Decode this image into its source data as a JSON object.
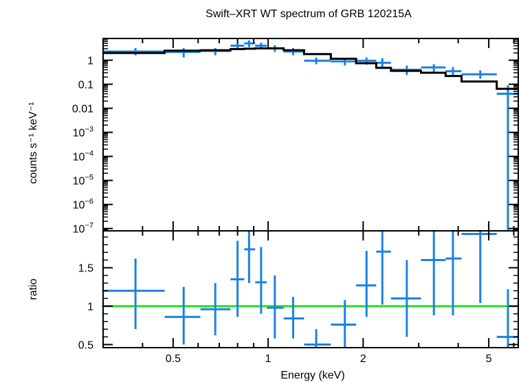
{
  "chart_data": {
    "type": "scatter",
    "title": "Swift–XRT WT spectrum of GRB 120215A",
    "xlabel": "Energy (keV)",
    "x_scale": "log",
    "xlim": [
      0.3,
      6.2
    ],
    "x_ticks": [
      {
        "value": 0.5,
        "label": "0.5"
      },
      {
        "value": 1,
        "label": "1"
      },
      {
        "value": 2,
        "label": "2"
      },
      {
        "value": 5,
        "label": "5"
      }
    ],
    "spectrum_panel": {
      "ylabel": "counts s⁻¹ keV⁻¹",
      "y_scale": "log",
      "ylim": [
        8e-08,
        8
      ],
      "y_ticks": [
        {
          "value": 1,
          "label": "1"
        },
        {
          "value": 0.1,
          "label": "0.1"
        },
        {
          "value": 0.01,
          "label": "0.01"
        },
        {
          "base": "10",
          "exp": "−3",
          "value": 0.001
        },
        {
          "base": "10",
          "exp": "−4",
          "value": 0.0001
        },
        {
          "base": "10",
          "exp": "−5",
          "value": 1e-05
        },
        {
          "base": "10",
          "exp": "−6",
          "value": 1e-06
        },
        {
          "base": "10",
          "exp": "−7",
          "value": 1e-07
        }
      ],
      "data_color": "#1a82e6",
      "model_color": "#000000",
      "data_points": [
        {
          "x": 0.38,
          "xlo": 0.3,
          "xhi": 0.47,
          "y": 2.3,
          "ylo": 1.6,
          "yhi": 3.2
        },
        {
          "x": 0.54,
          "xlo": 0.47,
          "xhi": 0.61,
          "y": 2.2,
          "ylo": 1.3,
          "yhi": 3.2
        },
        {
          "x": 0.68,
          "xlo": 0.61,
          "xhi": 0.76,
          "y": 2.4,
          "ylo": 1.6,
          "yhi": 3.2
        },
        {
          "x": 0.8,
          "xlo": 0.76,
          "xhi": 0.84,
          "y": 4.0,
          "ylo": 2.6,
          "yhi": 5.3
        },
        {
          "x": 0.87,
          "xlo": 0.84,
          "xhi": 0.91,
          "y": 5.0,
          "ylo": 3.5,
          "yhi": 6.7
        },
        {
          "x": 0.95,
          "xlo": 0.91,
          "xhi": 0.99,
          "y": 4.0,
          "ylo": 2.8,
          "yhi": 5.4
        },
        {
          "x": 1.05,
          "xlo": 0.99,
          "xhi": 1.12,
          "y": 3.1,
          "ylo": 2.2,
          "yhi": 4.2
        },
        {
          "x": 1.2,
          "xlo": 1.12,
          "xhi": 1.3,
          "y": 2.3,
          "ylo": 1.6,
          "yhi": 3.2
        },
        {
          "x": 1.42,
          "xlo": 1.3,
          "xhi": 1.58,
          "y": 0.95,
          "ylo": 0.68,
          "yhi": 1.3
        },
        {
          "x": 1.75,
          "xlo": 1.58,
          "xhi": 1.9,
          "y": 0.9,
          "ylo": 0.6,
          "yhi": 1.25
        },
        {
          "x": 2.05,
          "xlo": 1.9,
          "xhi": 2.2,
          "y": 0.95,
          "ylo": 0.65,
          "yhi": 1.3
        },
        {
          "x": 2.3,
          "xlo": 2.2,
          "xhi": 2.45,
          "y": 0.78,
          "ylo": 0.45,
          "yhi": 1.2
        },
        {
          "x": 2.75,
          "xlo": 2.45,
          "xhi": 3.05,
          "y": 0.4,
          "ylo": 0.24,
          "yhi": 0.6
        },
        {
          "x": 3.35,
          "xlo": 3.05,
          "xhi": 3.65,
          "y": 0.5,
          "ylo": 0.33,
          "yhi": 0.68
        },
        {
          "x": 3.85,
          "xlo": 3.65,
          "xhi": 4.1,
          "y": 0.35,
          "ylo": 0.22,
          "yhi": 0.52
        },
        {
          "x": 4.7,
          "xlo": 4.1,
          "xhi": 5.3,
          "y": 0.26,
          "ylo": 0.17,
          "yhi": 0.38
        },
        {
          "x": 5.75,
          "xlo": 5.3,
          "xhi": 6.2,
          "y": 0.04,
          "ylo": 8e-08,
          "yhi": 0.09
        }
      ],
      "model_steps": [
        {
          "xlo": 0.3,
          "xhi": 0.47,
          "y": 2.0
        },
        {
          "xlo": 0.47,
          "xhi": 0.61,
          "y": 2.5
        },
        {
          "xlo": 0.61,
          "xhi": 0.76,
          "y": 2.6
        },
        {
          "xlo": 0.76,
          "xhi": 0.84,
          "y": 2.9
        },
        {
          "xlo": 0.84,
          "xhi": 0.91,
          "y": 3.0
        },
        {
          "xlo": 0.91,
          "xhi": 0.99,
          "y": 3.1
        },
        {
          "xlo": 0.99,
          "xhi": 1.12,
          "y": 3.1
        },
        {
          "xlo": 1.12,
          "xhi": 1.3,
          "y": 2.6
        },
        {
          "xlo": 1.3,
          "xhi": 1.58,
          "y": 1.8
        },
        {
          "xlo": 1.58,
          "xhi": 1.9,
          "y": 1.15
        },
        {
          "xlo": 1.9,
          "xhi": 2.2,
          "y": 0.75
        },
        {
          "xlo": 2.2,
          "xhi": 2.45,
          "y": 0.48
        },
        {
          "xlo": 2.45,
          "xhi": 3.05,
          "y": 0.36
        },
        {
          "xlo": 3.05,
          "xhi": 3.65,
          "y": 0.3
        },
        {
          "xlo": 3.65,
          "xhi": 4.1,
          "y": 0.22
        },
        {
          "xlo": 4.1,
          "xhi": 5.3,
          "y": 0.13
        },
        {
          "xlo": 5.3,
          "xhi": 6.2,
          "y": 0.065
        }
      ]
    },
    "ratio_panel": {
      "ylabel": "ratio",
      "y_scale": "linear",
      "ylim": [
        0.46,
        1.98
      ],
      "y_ticks": [
        {
          "value": 0.5,
          "label": "0.5"
        },
        {
          "value": 1,
          "label": "1"
        },
        {
          "value": 1.5,
          "label": "1.5"
        }
      ],
      "reference_line": {
        "y": 1,
        "color": "#22e622"
      },
      "data_color": "#1a82e6",
      "data_points": [
        {
          "x": 0.38,
          "xlo": 0.3,
          "xhi": 0.47,
          "y": 1.2,
          "ylo": 0.7,
          "yhi": 1.62
        },
        {
          "x": 0.54,
          "xlo": 0.47,
          "xhi": 0.61,
          "y": 0.86,
          "ylo": 0.5,
          "yhi": 1.25
        },
        {
          "x": 0.68,
          "xlo": 0.61,
          "xhi": 0.76,
          "y": 0.96,
          "ylo": 0.62,
          "yhi": 1.3
        },
        {
          "x": 0.8,
          "xlo": 0.76,
          "xhi": 0.84,
          "y": 1.35,
          "ylo": 0.86,
          "yhi": 1.85
        },
        {
          "x": 0.87,
          "xlo": 0.84,
          "xhi": 0.91,
          "y": 1.74,
          "ylo": 1.3,
          "yhi": 2.0
        },
        {
          "x": 0.95,
          "xlo": 0.91,
          "xhi": 0.99,
          "y": 1.31,
          "ylo": 0.9,
          "yhi": 1.77
        },
        {
          "x": 1.05,
          "xlo": 0.99,
          "xhi": 1.12,
          "y": 0.98,
          "ylo": 0.58,
          "yhi": 1.4
        },
        {
          "x": 1.2,
          "xlo": 1.12,
          "xhi": 1.3,
          "y": 0.84,
          "ylo": 0.58,
          "yhi": 1.12
        },
        {
          "x": 1.42,
          "xlo": 1.3,
          "xhi": 1.58,
          "y": 0.5,
          "ylo": 0.46,
          "yhi": 0.7
        },
        {
          "x": 1.75,
          "xlo": 1.58,
          "xhi": 1.9,
          "y": 0.76,
          "ylo": 0.46,
          "yhi": 1.08
        },
        {
          "x": 2.05,
          "xlo": 1.9,
          "xhi": 2.2,
          "y": 1.27,
          "ylo": 0.86,
          "yhi": 1.72
        },
        {
          "x": 2.3,
          "xlo": 2.2,
          "xhi": 2.45,
          "y": 1.71,
          "ylo": 1.02,
          "yhi": 2.0
        },
        {
          "x": 2.75,
          "xlo": 2.45,
          "xhi": 3.05,
          "y": 1.1,
          "ylo": 0.6,
          "yhi": 1.6
        },
        {
          "x": 3.35,
          "xlo": 3.05,
          "xhi": 3.65,
          "y": 1.6,
          "ylo": 0.88,
          "yhi": 2.0
        },
        {
          "x": 3.85,
          "xlo": 3.65,
          "xhi": 4.1,
          "y": 1.62,
          "ylo": 0.88,
          "yhi": 2.0
        },
        {
          "x": 4.7,
          "xlo": 4.1,
          "xhi": 5.3,
          "y": 1.94,
          "ylo": 1.04,
          "yhi": 2.0
        },
        {
          "x": 5.75,
          "xlo": 5.3,
          "xhi": 6.2,
          "y": 0.6,
          "ylo": 0.46,
          "yhi": 1.22
        }
      ]
    }
  }
}
